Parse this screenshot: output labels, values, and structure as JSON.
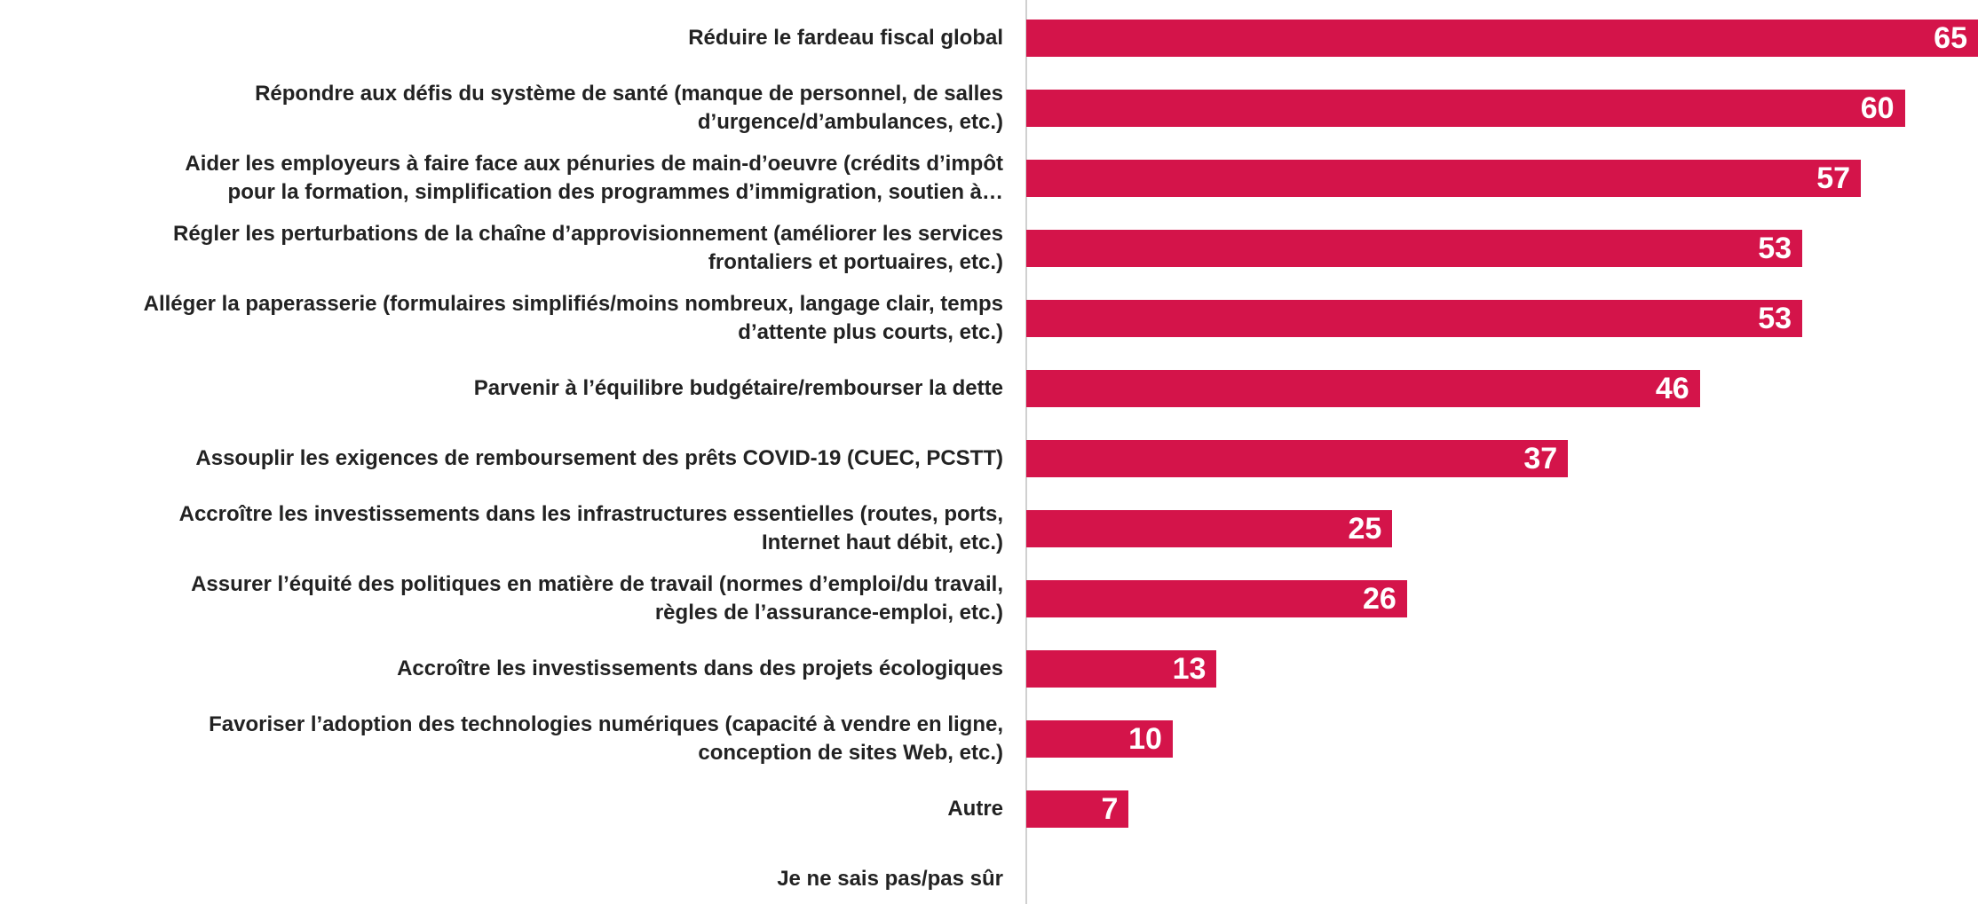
{
  "chart_data": {
    "type": "bar",
    "orientation": "horizontal",
    "color": "#d4144a",
    "categories": [
      "Réduire le fardeau fiscal global",
      "Répondre aux défis du système de santé (manque de personnel, de salles\nd’urgence/d’ambulances, etc.)",
      "Aider les employeurs à faire face aux pénuries de main-d’oeuvre (crédits d’impôt\npour la formation, simplification des programmes d’immigration, soutien à…",
      "Régler les perturbations de la chaîne d’approvisionnement (améliorer les services\nfrontaliers et portuaires, etc.)",
      "Alléger la paperasserie (formulaires simplifiés/moins nombreux, langage clair, temps\nd’attente plus courts, etc.)",
      "Parvenir à l’équilibre budgétaire/rembourser la dette",
      "Assouplir les exigences de remboursement des prêts COVID-19 (CUEC, PCSTT)",
      "Accroître les investissements dans les infrastructures essentielles (routes, ports,\nInternet haut débit, etc.)",
      "Assurer l’équité des politiques en matière de travail (normes d’emploi/du travail,\nrègles de l’assurance-emploi, etc.)",
      "Accroître les investissements dans des projets écologiques",
      "Favoriser l’adoption des technologies numériques (capacité à vendre en ligne,\nconception de sites Web, etc.)",
      "Autre",
      "Je ne sais pas/pas sûr"
    ],
    "values": [
      65,
      60,
      57,
      53,
      53,
      46,
      37,
      25,
      26,
      13,
      10,
      7,
      null
    ],
    "xlim": [
      0,
      65
    ]
  }
}
